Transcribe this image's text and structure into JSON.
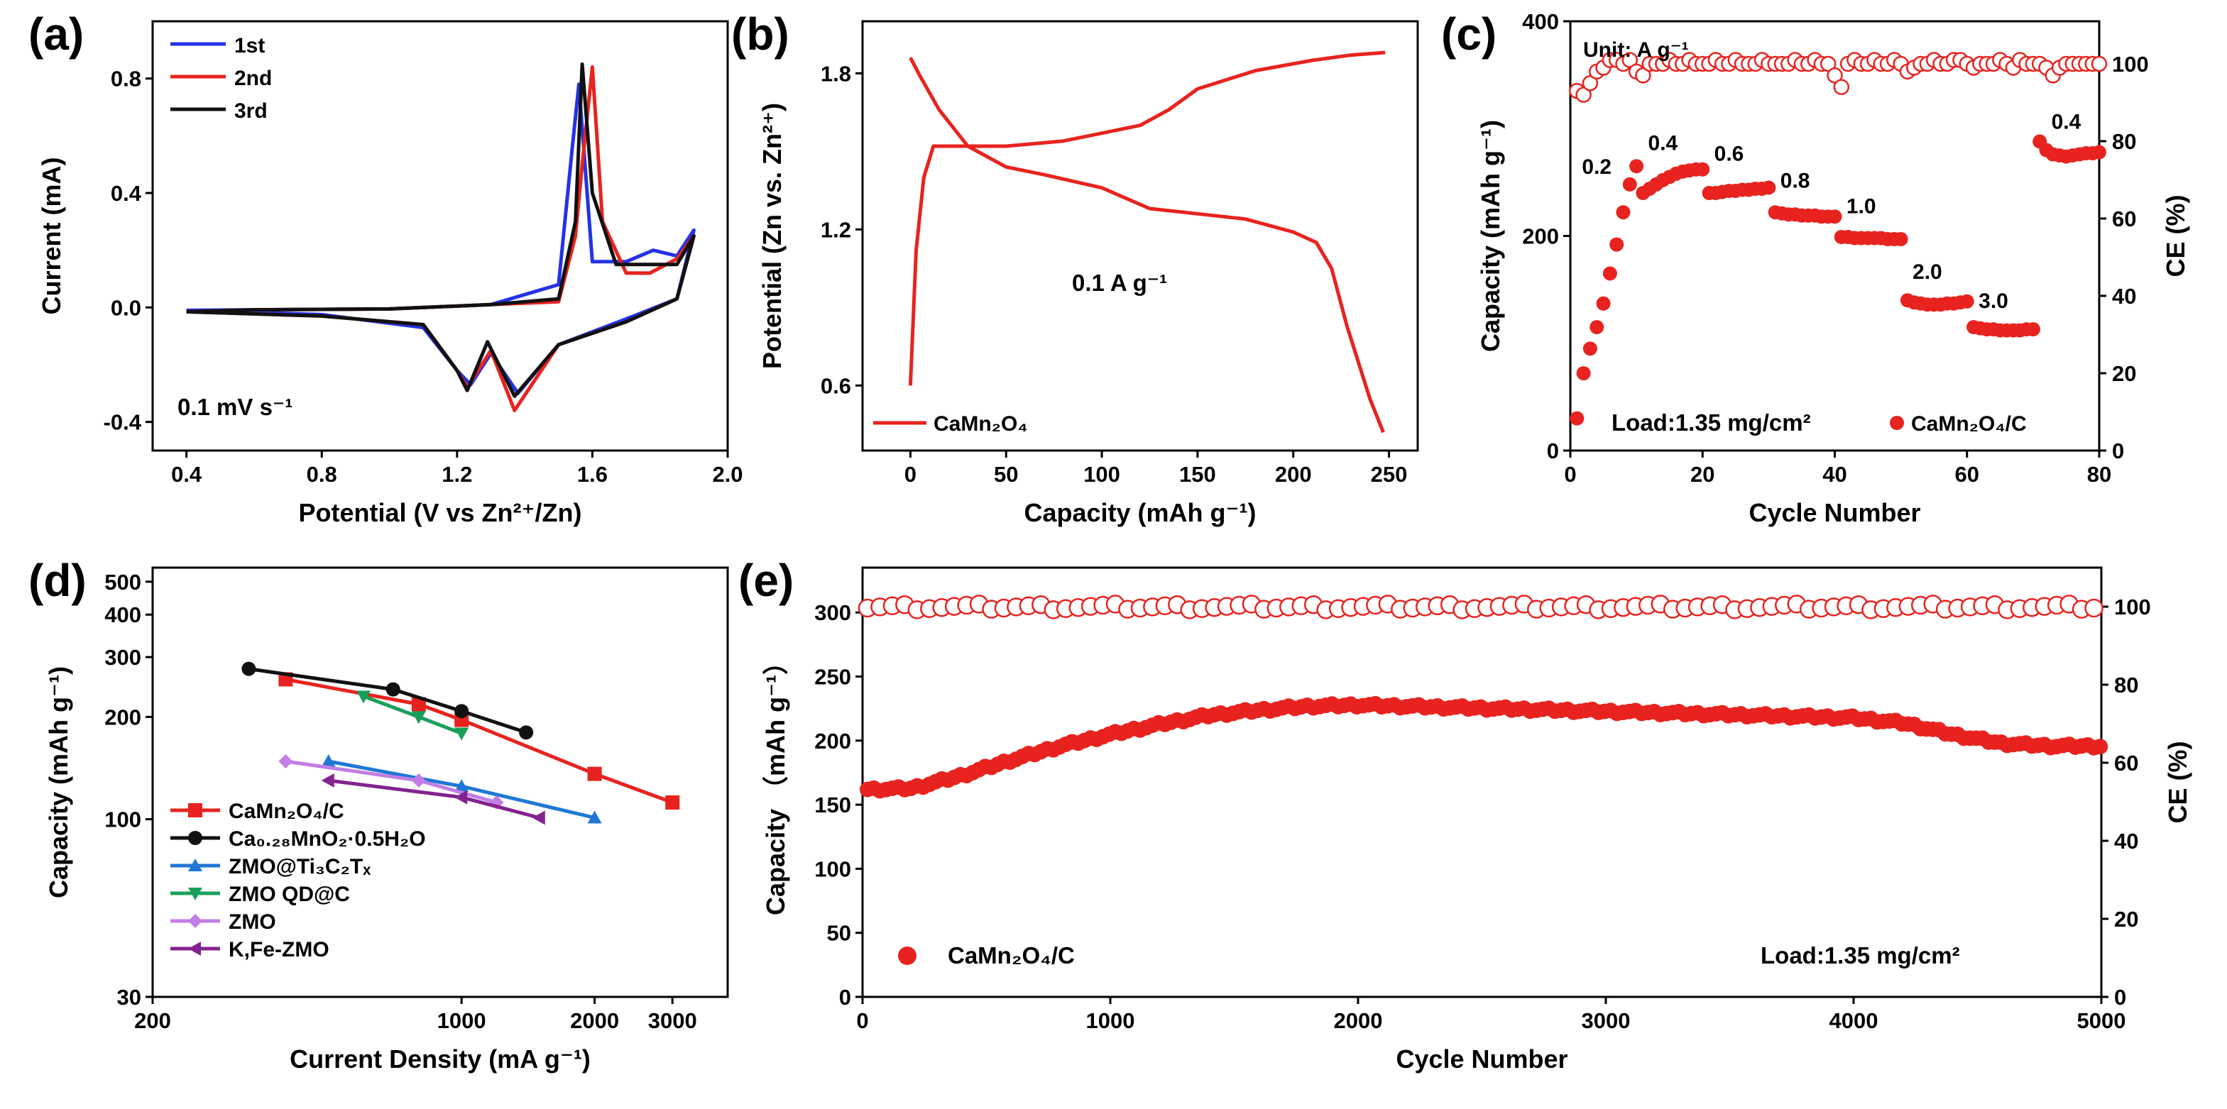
{
  "figure": {
    "panel_labels": [
      "(a)",
      "(b)",
      "(c)",
      "(d)",
      "(e)"
    ],
    "colors": {
      "red": "#e8231f",
      "blue": "#2432e8",
      "black": "#111111",
      "sky": "#1f78d4",
      "green": "#18a05a",
      "violet": "#c27de6",
      "purple": "#84228f"
    }
  },
  "chart_data": [
    {
      "id": "a",
      "type": "line",
      "title": "(a)",
      "xlabel": "Potential (V vs Zn²⁺/Zn)",
      "ylabel": "Current (mA)",
      "xlim": [
        0.3,
        2.0
      ],
      "ylim": [
        -0.5,
        1.0
      ],
      "xticks": [
        "0.4",
        "0.8",
        "1.2",
        "1.6",
        "2.0"
      ],
      "xtick_values": [
        0.4,
        0.8,
        1.2,
        1.6,
        2.0
      ],
      "yticks": [
        "-0.4",
        "0.0",
        "0.4",
        "0.8"
      ],
      "ytick_values": [
        -0.4,
        0.0,
        0.4,
        0.8
      ],
      "annotation": "0.1 mV s⁻¹",
      "series": [
        {
          "name": "1st",
          "color": "#2432e8",
          "x": [
            0.4,
            0.8,
            1.1,
            1.2,
            1.24,
            1.3,
            1.38,
            1.5,
            1.7,
            1.85,
            1.9,
            1.9,
            1.85,
            1.78,
            1.7,
            1.6,
            1.56,
            1.54,
            1.5,
            1.3,
            1.0,
            0.6,
            0.4
          ],
          "y": [
            -0.01,
            -0.025,
            -0.07,
            -0.22,
            -0.27,
            -0.16,
            -0.3,
            -0.13,
            -0.04,
            0.03,
            0.27,
            0.27,
            0.18,
            0.2,
            0.16,
            0.16,
            0.78,
            0.55,
            0.08,
            0.01,
            -0.005,
            -0.008,
            -0.01
          ]
        },
        {
          "name": "2nd",
          "color": "#e8231f",
          "x": [
            0.4,
            0.8,
            1.1,
            1.2,
            1.23,
            1.3,
            1.37,
            1.5,
            1.7,
            1.85,
            1.9,
            1.9,
            1.85,
            1.77,
            1.7,
            1.63,
            1.6,
            1.57,
            1.55,
            1.5,
            1.3,
            1.0,
            0.6,
            0.4
          ],
          "y": [
            -0.015,
            -0.03,
            -0.06,
            -0.22,
            -0.28,
            -0.15,
            -0.36,
            -0.13,
            -0.05,
            0.03,
            0.25,
            0.25,
            0.17,
            0.12,
            0.12,
            0.3,
            0.84,
            0.5,
            0.25,
            0.02,
            0.01,
            -0.005,
            -0.008,
            -0.015
          ]
        },
        {
          "name": "3rd",
          "color": "#111111",
          "x": [
            0.4,
            0.8,
            1.1,
            1.2,
            1.23,
            1.29,
            1.37,
            1.5,
            1.7,
            1.85,
            1.9,
            1.9,
            1.85,
            1.75,
            1.67,
            1.6,
            1.57,
            1.55,
            1.5,
            1.3,
            1.0,
            0.6,
            0.4
          ],
          "y": [
            -0.015,
            -0.03,
            -0.06,
            -0.22,
            -0.29,
            -0.12,
            -0.31,
            -0.13,
            -0.05,
            0.03,
            0.25,
            0.25,
            0.15,
            0.15,
            0.15,
            0.4,
            0.85,
            0.3,
            0.03,
            0.01,
            -0.005,
            -0.008,
            -0.015
          ]
        }
      ]
    },
    {
      "id": "b",
      "type": "line",
      "title": "(b)",
      "xlabel": "Capacity (mAh g⁻¹)",
      "ylabel": "Potential (Zn vs. Zn²⁺)",
      "xlim": [
        -25,
        265
      ],
      "ylim": [
        0.35,
        2.0
      ],
      "xticks": [
        "0",
        "50",
        "100",
        "150",
        "200",
        "250"
      ],
      "xtick_values": [
        0,
        50,
        100,
        150,
        200,
        250
      ],
      "yticks": [
        "0.6",
        "1.2",
        "1.8"
      ],
      "ytick_values": [
        0.6,
        1.2,
        1.8
      ],
      "annotation": "0.1 A g⁻¹",
      "legend": [
        "CaMn₂O₄"
      ],
      "series": [
        {
          "name": "CaMn2O4 discharge",
          "color": "#e8231f",
          "x": [
            0,
            5,
            15,
            30,
            50,
            70,
            100,
            125,
            150,
            175,
            200,
            212,
            220,
            228,
            240,
            247
          ],
          "y": [
            1.86,
            1.79,
            1.66,
            1.52,
            1.44,
            1.41,
            1.36,
            1.28,
            1.26,
            1.24,
            1.19,
            1.15,
            1.05,
            0.83,
            0.55,
            0.42
          ]
        },
        {
          "name": "CaMn2O4 charge",
          "color": "#e8231f",
          "x": [
            0,
            3,
            7,
            12,
            20,
            50,
            80,
            100,
            120,
            135,
            150,
            180,
            210,
            230,
            248
          ],
          "y": [
            0.6,
            1.12,
            1.4,
            1.52,
            1.52,
            1.52,
            1.54,
            1.57,
            1.6,
            1.66,
            1.74,
            1.81,
            1.85,
            1.87,
            1.88
          ]
        }
      ]
    },
    {
      "id": "c",
      "type": "scatter",
      "title": "(c)",
      "xlabel": "Cycle Number",
      "ylabel": "Capacity (mAh g⁻¹)",
      "ylabel_right": "CE (%)",
      "xlim": [
        0,
        80
      ],
      "ylim": [
        0,
        400
      ],
      "ylim_right": [
        0,
        111
      ],
      "xticks": [
        "0",
        "20",
        "40",
        "60",
        "80"
      ],
      "xtick_values": [
        0,
        20,
        40,
        60,
        80
      ],
      "yticks": [
        "0",
        "200",
        "400"
      ],
      "ytick_values": [
        0,
        200,
        400
      ],
      "yticks_right": [
        "0",
        "20",
        "40",
        "60",
        "80",
        "100"
      ],
      "ytick_values_right": [
        0,
        20,
        40,
        60,
        80,
        100
      ],
      "unit_note": "Unit:  A g⁻¹",
      "load_note": "Load:1.35 mg/cm²",
      "legend": [
        "CaMn₂O₄/C"
      ],
      "rate_labels": [
        {
          "text": "0.2",
          "x": 4,
          "y": 258
        },
        {
          "text": "0.4",
          "x": 14,
          "y": 280
        },
        {
          "text": "0.6",
          "x": 24,
          "y": 270
        },
        {
          "text": "0.8",
          "x": 34,
          "y": 245
        },
        {
          "text": "1.0",
          "x": 44,
          "y": 221
        },
        {
          "text": "2.0",
          "x": 54,
          "y": 160
        },
        {
          "text": "3.0",
          "x": 64,
          "y": 133
        },
        {
          "text": "0.4",
          "x": 75,
          "y": 300
        }
      ],
      "series": [
        {
          "name": "Capacity",
          "color": "#e8231f",
          "marker": "filled-circle",
          "x": [
            1,
            2,
            3,
            4,
            5,
            6,
            7,
            8,
            9,
            10,
            11,
            12,
            13,
            14,
            15,
            16,
            17,
            18,
            19,
            20,
            21,
            22,
            23,
            24,
            25,
            26,
            27,
            28,
            29,
            30,
            31,
            32,
            33,
            34,
            35,
            36,
            37,
            38,
            39,
            40,
            41,
            42,
            43,
            44,
            45,
            46,
            47,
            48,
            49,
            50,
            51,
            52,
            53,
            54,
            55,
            56,
            57,
            58,
            59,
            60,
            61,
            62,
            63,
            64,
            65,
            66,
            67,
            68,
            69,
            70,
            71,
            72,
            73,
            74,
            75,
            76,
            77,
            78,
            79,
            80
          ],
          "y": [
            30,
            72,
            95,
            115,
            137,
            165,
            192,
            222,
            248,
            265,
            240,
            244,
            248,
            252,
            255,
            258,
            260,
            261,
            262,
            262,
            240,
            240,
            241,
            242,
            242,
            243,
            243,
            244,
            244,
            245,
            222,
            221,
            220,
            220,
            219,
            219,
            219,
            218,
            218,
            218,
            199,
            199,
            198,
            198,
            198,
            198,
            198,
            197,
            197,
            197,
            140,
            138,
            137,
            136,
            136,
            136,
            137,
            137,
            138,
            139,
            115,
            114,
            113,
            113,
            112,
            112,
            112,
            112,
            113,
            113,
            288,
            280,
            276,
            275,
            274,
            275,
            276,
            277,
            277,
            278
          ]
        },
        {
          "name": "CE",
          "color": "#e8231f",
          "marker": "open-circle",
          "x": [
            1,
            2,
            3,
            4,
            5,
            6,
            7,
            8,
            9,
            10,
            11,
            12,
            13,
            14,
            15,
            16,
            17,
            18,
            19,
            20,
            21,
            22,
            23,
            24,
            25,
            26,
            27,
            28,
            29,
            30,
            31,
            32,
            33,
            34,
            35,
            36,
            37,
            38,
            39,
            40,
            41,
            42,
            43,
            44,
            45,
            46,
            47,
            48,
            49,
            50,
            51,
            52,
            53,
            54,
            55,
            56,
            57,
            58,
            59,
            60,
            61,
            62,
            63,
            64,
            65,
            66,
            67,
            68,
            69,
            70,
            71,
            72,
            73,
            74,
            75,
            76,
            77,
            78,
            79,
            80
          ],
          "y": [
            93,
            92,
            95,
            98,
            99,
            101,
            101,
            100,
            101,
            98,
            97,
            100,
            100,
            100,
            101,
            100,
            100,
            101,
            100,
            100,
            100,
            101,
            100,
            100,
            101,
            100,
            100,
            100,
            101,
            100,
            100,
            100,
            100,
            101,
            100,
            100,
            101,
            100,
            100,
            97,
            94,
            100,
            101,
            100,
            100,
            101,
            100,
            100,
            101,
            100,
            98,
            99,
            100,
            100,
            101,
            100,
            100,
            101,
            101,
            100,
            99,
            100,
            100,
            100,
            101,
            100,
            99,
            101,
            100,
            100,
            100,
            99,
            97,
            99,
            100,
            100,
            100,
            100,
            100,
            100
          ]
        }
      ]
    },
    {
      "id": "d",
      "type": "line",
      "title": "(d)",
      "xlabel": "Current Density (mA g⁻¹)",
      "ylabel": "Capacity (mAh g⁻¹)",
      "xscale": "log",
      "yscale": "log",
      "xlim": [
        200,
        4000
      ],
      "ylim": [
        30,
        550
      ],
      "xticks": [
        "200",
        "1000",
        "2000",
        "3000"
      ],
      "xtick_values": [
        200,
        1000,
        2000,
        3000
      ],
      "yticks": [
        "30",
        "100",
        "200",
        "300",
        "400",
        "500"
      ],
      "ytick_values": [
        30,
        100,
        200,
        300,
        400,
        500
      ],
      "series": [
        {
          "name": "CaMn₂O₄/C",
          "color": "#e8231f",
          "marker": "square",
          "x": [
            400,
            800,
            1000,
            2000,
            3000
          ],
          "y": [
            258,
            218,
            196,
            136,
            112
          ]
        },
        {
          "name": "Ca₀.₂₈MnO₂·0.5H₂O",
          "color": "#111111",
          "marker": "circle",
          "x": [
            330,
            700,
            1000,
            1400
          ],
          "y": [
            277,
            241,
            208,
            180
          ]
        },
        {
          "name": "ZMO@Ti₃C₂Tₓ",
          "color": "#1f78d4",
          "marker": "triangle-up",
          "x": [
            500,
            1000,
            2000
          ],
          "y": [
            148,
            125,
            101
          ]
        },
        {
          "name": "ZMO QD@C",
          "color": "#18a05a",
          "marker": "triangle-down",
          "x": [
            600,
            800,
            1000
          ],
          "y": [
            230,
            200,
            179
          ]
        },
        {
          "name": "ZMO",
          "color": "#c27de6",
          "marker": "diamond",
          "x": [
            400,
            800,
            1200
          ],
          "y": [
            148,
            130,
            112
          ]
        },
        {
          "name": "K,Fe-ZMO",
          "color": "#84228f",
          "marker": "triangle-left",
          "x": [
            500,
            1000,
            1500
          ],
          "y": [
            130,
            116,
            101
          ]
        }
      ]
    },
    {
      "id": "e",
      "type": "scatter",
      "title": "(e)",
      "xlabel": "Cycle Number",
      "ylabel": "Capacity （mAh g⁻¹）",
      "ylabel_right": "CE (%)",
      "xlim": [
        0,
        5000
      ],
      "ylim": [
        0,
        335
      ],
      "ylim_right": [
        0,
        110
      ],
      "xticks": [
        "0",
        "1000",
        "2000",
        "3000",
        "4000",
        "5000"
      ],
      "xtick_values": [
        0,
        1000,
        2000,
        3000,
        4000,
        5000
      ],
      "yticks": [
        "0",
        "50",
        "100",
        "150",
        "200",
        "250",
        "300"
      ],
      "ytick_values": [
        0,
        50,
        100,
        150,
        200,
        250,
        300
      ],
      "yticks_right": [
        "0",
        "20",
        "40",
        "60",
        "80",
        "100"
      ],
      "ytick_values_right": [
        0,
        20,
        40,
        60,
        80,
        100
      ],
      "load_note": "Load:1.35 mg/cm²",
      "legend": [
        "CaMn₂O₄/C"
      ],
      "series": [
        {
          "name": "Capacity",
          "color": "#e8231f",
          "marker": "filled-circle",
          "x": [
            0,
            200,
            400,
            600,
            800,
            1000,
            1200,
            1400,
            1600,
            1800,
            2000,
            2200,
            2400,
            2600,
            2800,
            3000,
            3200,
            3400,
            3600,
            3800,
            4000,
            4200,
            4400,
            4600,
            4800,
            5000
          ],
          "y": [
            162,
            163,
            173,
            185,
            196,
            205,
            213,
            220,
            224,
            227,
            228,
            227,
            226,
            225,
            224,
            223,
            222,
            221,
            220,
            219,
            218,
            214,
            205,
            198,
            196,
            196
          ]
        },
        {
          "name": "CE",
          "color": "#e8231f",
          "marker": "open-circle",
          "x": [
            0,
            5000
          ],
          "y": [
            100,
            100
          ]
        }
      ]
    }
  ]
}
